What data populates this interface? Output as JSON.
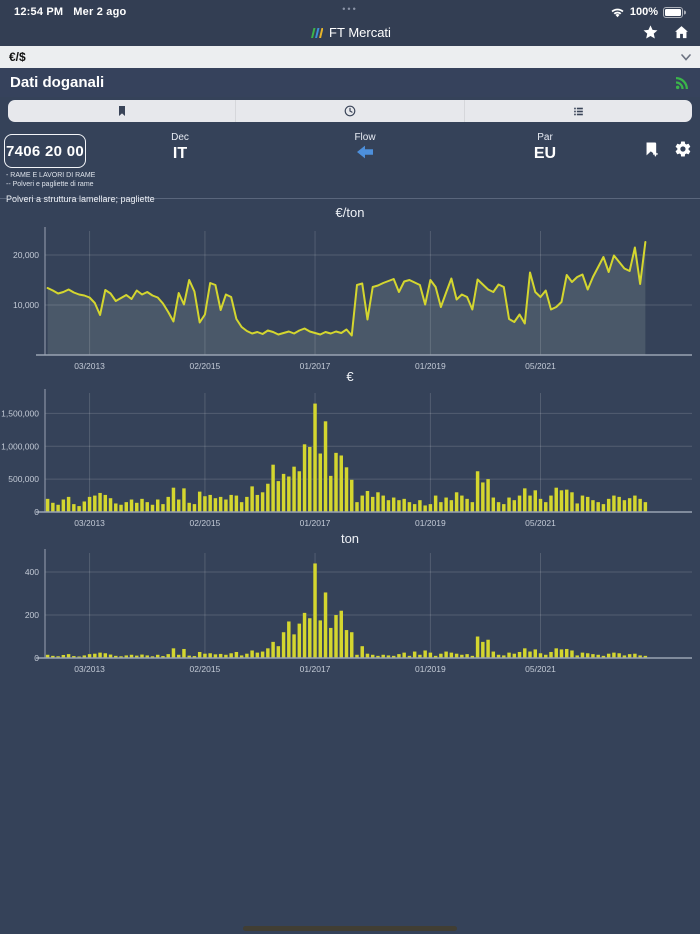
{
  "status": {
    "time": "12:54 PM",
    "date": "Mer 2 ago",
    "battery": "100%",
    "multitask_dots": "•••"
  },
  "nav": {
    "title": "FT Mercati"
  },
  "filter": {
    "selected": "€/$"
  },
  "section": {
    "title": "Dati doganali"
  },
  "detail": {
    "code": "7406 20 00",
    "dec_label": "Dec",
    "dec_value": "IT",
    "flow_label": "Flow",
    "par_label": "Par",
    "par_value": "EU",
    "desc_line1": "- RAME E LAVORI DI RAME",
    "desc_line2": "-- Polveri e pagliette di rame",
    "desc_line3": "Polveri a struttura lamellare; pagliette"
  },
  "colors": {
    "accent_yellow": "#d4d62f",
    "flow_blue": "#4d8fdb",
    "rss_green": "#3bb54a",
    "topbar_bg": "#333e53",
    "body_bg": "#354259"
  },
  "chart_data": [
    {
      "type": "line",
      "title": "€/ton",
      "xlabel": "",
      "ylabel": "€/ton",
      "ylim": [
        0,
        24000
      ],
      "grid": true,
      "x_tick_labels": [
        "03/2013",
        "02/2015",
        "01/2017",
        "01/2019",
        "05/2021"
      ],
      "x_tick_indices": [
        8,
        30,
        51,
        73,
        94
      ],
      "y_ticks": [
        {
          "v": 10000,
          "label": "10,000"
        },
        {
          "v": 20000,
          "label": "20,000"
        }
      ],
      "values": [
        13400,
        12900,
        12300,
        12600,
        13100,
        12500,
        12100,
        11900,
        11500,
        10400,
        8000,
        13000,
        12300,
        10800,
        11400,
        12000,
        11200,
        12900,
        12100,
        12600,
        11900,
        11500,
        10300,
        8600,
        6700,
        12400,
        10100,
        15000,
        12700,
        6500,
        8100,
        14400,
        14000,
        9000,
        12100,
        11600,
        7200,
        5600,
        4800,
        4300,
        4600,
        4200,
        4900,
        4600,
        4100,
        4400,
        4700,
        4300,
        4900,
        5300,
        4700,
        4400,
        4100,
        4600,
        4300,
        4700,
        4400,
        5100,
        3900,
        14000,
        14300,
        7100,
        13600,
        13900,
        14400,
        14800,
        15200,
        12600,
        14700,
        15000,
        14500,
        14000,
        10100,
        15000,
        13600,
        9600,
        12500,
        15300,
        11100,
        12100,
        11600,
        9100,
        15100,
        14100,
        13100,
        12600,
        14100,
        13600,
        7200,
        6600,
        8100,
        6300,
        16500,
        12600,
        11600,
        12900,
        9100,
        9600,
        10600,
        16000,
        14600,
        15600,
        16100,
        13100,
        15600,
        17600,
        19600,
        16600,
        19900,
        18600,
        17300,
        16800,
        21500,
        14200,
        22600
      ]
    },
    {
      "type": "bar",
      "title": "€",
      "xlabel": "",
      "ylabel": "€",
      "ylim": [
        0,
        1750000
      ],
      "grid": true,
      "x_tick_labels": [
        "03/2013",
        "02/2015",
        "01/2017",
        "01/2019",
        "05/2021"
      ],
      "x_tick_indices": [
        8,
        30,
        51,
        73,
        94
      ],
      "y_ticks": [
        {
          "v": 0,
          "label": "0"
        },
        {
          "v": 500000,
          "label": "500,000"
        },
        {
          "v": 1000000,
          "label": "1,000,000"
        },
        {
          "v": 1500000,
          "label": "1,500,000"
        }
      ],
      "values": [
        200000,
        140000,
        110000,
        190000,
        230000,
        120000,
        90000,
        160000,
        230000,
        250000,
        290000,
        260000,
        210000,
        130000,
        110000,
        150000,
        190000,
        140000,
        200000,
        150000,
        110000,
        190000,
        120000,
        230000,
        370000,
        190000,
        360000,
        140000,
        120000,
        310000,
        240000,
        260000,
        210000,
        230000,
        190000,
        260000,
        250000,
        150000,
        230000,
        390000,
        260000,
        300000,
        430000,
        720000,
        470000,
        580000,
        540000,
        690000,
        620000,
        1030000,
        990000,
        1650000,
        890000,
        1380000,
        550000,
        900000,
        860000,
        680000,
        490000,
        150000,
        250000,
        320000,
        230000,
        300000,
        250000,
        180000,
        220000,
        180000,
        200000,
        150000,
        120000,
        180000,
        100000,
        120000,
        250000,
        150000,
        220000,
        180000,
        300000,
        250000,
        200000,
        150000,
        620000,
        450000,
        500000,
        220000,
        150000,
        120000,
        220000,
        180000,
        250000,
        360000,
        250000,
        330000,
        200000,
        150000,
        250000,
        370000,
        330000,
        340000,
        300000,
        130000,
        250000,
        230000,
        180000,
        150000,
        120000,
        200000,
        250000,
        230000,
        180000,
        210000,
        250000,
        200000,
        150000
      ]
    },
    {
      "type": "bar",
      "title": "ton",
      "xlabel": "",
      "ylabel": "ton",
      "ylim": [
        0,
        470
      ],
      "grid": true,
      "x_tick_labels": [
        "03/2013",
        "02/2015",
        "01/2017",
        "01/2019",
        "05/2021"
      ],
      "x_tick_indices": [
        8,
        30,
        51,
        73,
        94
      ],
      "y_ticks": [
        {
          "v": 0,
          "label": "0"
        },
        {
          "v": 200,
          "label": "200"
        },
        {
          "v": 400,
          "label": "400"
        }
      ],
      "values": [
        15,
        10,
        8,
        14,
        18,
        9,
        7,
        12,
        18,
        20,
        25,
        22,
        16,
        10,
        8,
        12,
        15,
        11,
        16,
        12,
        8,
        15,
        9,
        18,
        45,
        15,
        42,
        11,
        9,
        28,
        20,
        22,
        17,
        19,
        15,
        22,
        28,
        12,
        20,
        35,
        25,
        30,
        45,
        75,
        55,
        120,
        170,
        110,
        160,
        210,
        185,
        440,
        175,
        305,
        140,
        200,
        220,
        130,
        120,
        15,
        55,
        20,
        15,
        10,
        15,
        12,
        10,
        18,
        25,
        10,
        30,
        15,
        35,
        25,
        10,
        20,
        30,
        25,
        20,
        15,
        18,
        10,
        100,
        75,
        85,
        30,
        15,
        12,
        25,
        20,
        28,
        45,
        30,
        40,
        22,
        15,
        28,
        45,
        40,
        42,
        35,
        12,
        25,
        22,
        18,
        15,
        10,
        20,
        25,
        22,
        12,
        18,
        20,
        12,
        10
      ]
    }
  ]
}
